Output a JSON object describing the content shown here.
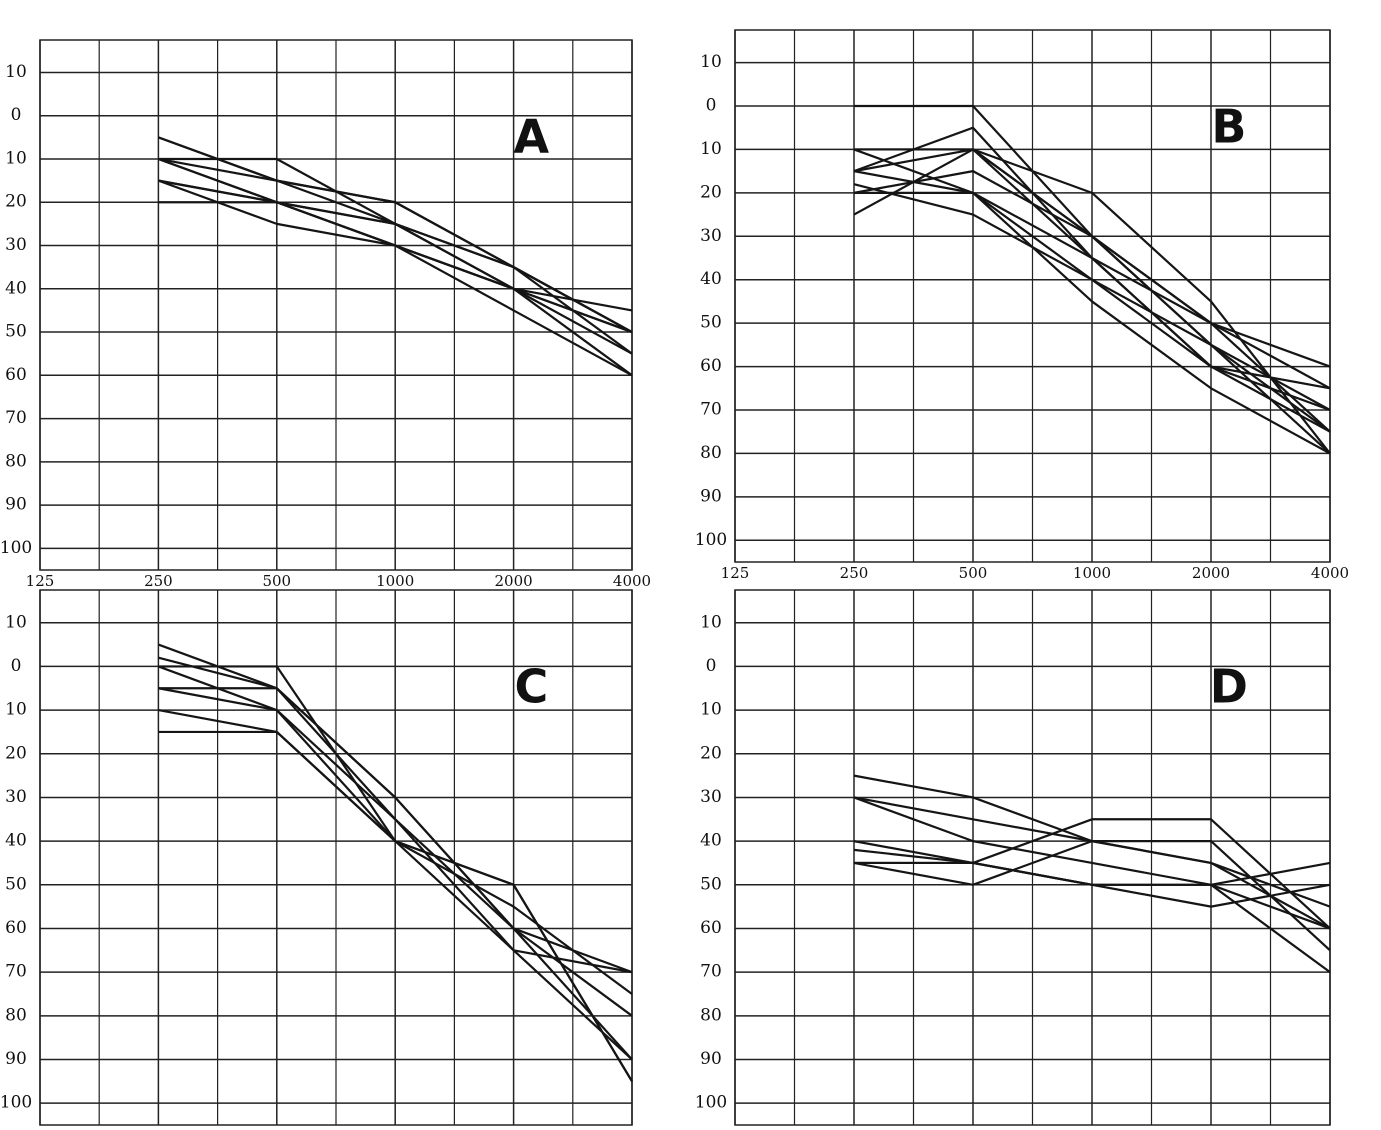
{
  "chart_data": [
    {
      "type": "line",
      "title": "A",
      "color": "#151515",
      "y_inverted": true,
      "x": [
        250,
        500,
        1000,
        2000,
        4000
      ],
      "log_x": true,
      "xlim": [
        125,
        4000
      ],
      "xticks": [
        125,
        250,
        500,
        1000,
        2000,
        4000
      ],
      "ylim": [
        -17.5,
        105
      ],
      "yticks": [
        {
          "value": -10,
          "label": "10"
        },
        0,
        10,
        20,
        30,
        40,
        50,
        60,
        70,
        80,
        90,
        100
      ],
      "series": [
        {
          "values": [
            5,
            15,
            25,
            40,
            50
          ]
        },
        {
          "values": [
            10,
            20,
            30,
            40,
            55
          ]
        },
        {
          "values": [
            10,
            10,
            25,
            35,
            50
          ]
        },
        {
          "values": [
            15,
            20,
            30,
            40,
            50
          ]
        },
        {
          "values": [
            20,
            20,
            30,
            45,
            60
          ]
        },
        {
          "values": [
            10,
            15,
            20,
            35,
            55
          ]
        },
        {
          "values": [
            15,
            25,
            30,
            40,
            45
          ]
        },
        {
          "values": [
            10,
            20,
            25,
            40,
            60
          ]
        },
        {
          "values": [
            15,
            20,
            25,
            35,
            50
          ]
        },
        {
          "values": [
            5,
            15,
            20,
            35,
            50
          ]
        }
      ]
    },
    {
      "type": "line",
      "title": "B",
      "color": "#151515",
      "y_inverted": true,
      "x": [
        250,
        500,
        1000,
        2000,
        4000
      ],
      "log_x": true,
      "xlim": [
        125,
        4000
      ],
      "xticks": [
        125,
        250,
        500,
        1000,
        2000,
        4000
      ],
      "ylim": [
        -17.5,
        105
      ],
      "yticks": [
        {
          "value": -10,
          "label": "10"
        },
        0,
        10,
        20,
        30,
        40,
        50,
        60,
        70,
        80,
        90,
        100
      ],
      "series": [
        {
          "values": [
            0,
            0,
            30,
            55,
            75
          ]
        },
        {
          "values": [
            10,
            10,
            20,
            45,
            80
          ]
        },
        {
          "values": [
            15,
            5,
            35,
            60,
            65
          ]
        },
        {
          "values": [
            25,
            10,
            30,
            50,
            75
          ]
        },
        {
          "values": [
            20,
            20,
            40,
            55,
            70
          ]
        },
        {
          "values": [
            10,
            20,
            45,
            65,
            80
          ]
        },
        {
          "values": [
            15,
            10,
            30,
            50,
            65
          ]
        },
        {
          "values": [
            20,
            15,
            30,
            55,
            80
          ]
        },
        {
          "values": [
            10,
            10,
            35,
            60,
            75
          ]
        },
        {
          "values": [
            15,
            20,
            35,
            50,
            60
          ]
        },
        {
          "values": [
            18,
            25,
            40,
            60,
            70
          ]
        }
      ]
    },
    {
      "type": "line",
      "title": "C",
      "color": "#151515",
      "y_inverted": true,
      "x": [
        250,
        500,
        1000,
        2000,
        4000
      ],
      "log_x": true,
      "xlim": [
        125,
        4000
      ],
      "ylim": [
        -17.5,
        105
      ],
      "yticks": [
        {
          "value": -10,
          "label": "10"
        },
        0,
        10,
        20,
        30,
        40,
        50,
        60,
        70,
        80,
        90,
        100
      ],
      "series": [
        {
          "values": [
            -5,
            5,
            30,
            60,
            90
          ]
        },
        {
          "values": [
            0,
            0,
            40,
            50,
            95
          ]
        },
        {
          "values": [
            5,
            10,
            35,
            60,
            70
          ]
        },
        {
          "values": [
            10,
            15,
            40,
            65,
            90
          ]
        },
        {
          "values": [
            15,
            15,
            40,
            55,
            75
          ]
        },
        {
          "values": [
            5,
            5,
            30,
            60,
            80
          ]
        },
        {
          "values": [
            0,
            10,
            40,
            50,
            95
          ]
        },
        {
          "values": [
            -2,
            5,
            35,
            65,
            70
          ]
        }
      ]
    },
    {
      "type": "line",
      "title": "D",
      "color": "#151515",
      "y_inverted": true,
      "x": [
        250,
        500,
        1000,
        2000,
        4000
      ],
      "log_x": true,
      "xlim": [
        125,
        4000
      ],
      "ylim": [
        -17.5,
        105
      ],
      "yticks": [
        {
          "value": -10,
          "label": "10"
        },
        0,
        10,
        20,
        30,
        40,
        50,
        60,
        70,
        80,
        90,
        100
      ],
      "series": [
        {
          "values": [
            25,
            30,
            40,
            45,
            55
          ]
        },
        {
          "values": [
            30,
            35,
            40,
            45,
            60
          ]
        },
        {
          "values": [
            30,
            40,
            45,
            50,
            70
          ]
        },
        {
          "values": [
            40,
            45,
            50,
            50,
            45
          ]
        },
        {
          "values": [
            45,
            45,
            35,
            35,
            60
          ]
        },
        {
          "values": [
            45,
            50,
            40,
            40,
            65
          ]
        },
        {
          "values": [
            42,
            45,
            50,
            55,
            50
          ]
        },
        {
          "values": [
            45,
            45,
            50,
            50,
            60
          ]
        }
      ]
    }
  ]
}
